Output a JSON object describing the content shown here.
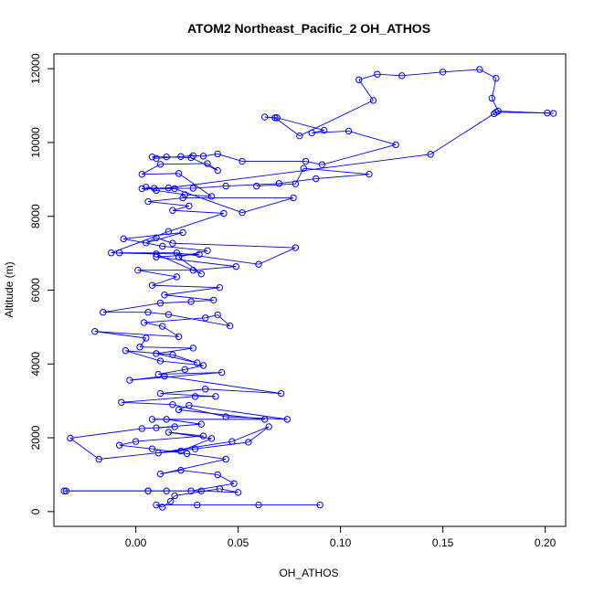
{
  "chart_data": {
    "type": "line",
    "title": "ATOM2 Northeast_Pacific_2 OH_ATHOS",
    "xlabel": "OH_ATHOS",
    "ylabel": "Altitude (m)",
    "xlim": [
      -0.04,
      0.21
    ],
    "ylim": [
      -400,
      12400
    ],
    "xticks": [
      0.0,
      0.05,
      0.1,
      0.15,
      0.2
    ],
    "xtick_labels": [
      "0.00",
      "0.05",
      "0.10",
      "0.15",
      "0.20"
    ],
    "yticks": [
      0,
      2000,
      4000,
      6000,
      8000,
      10000,
      12000
    ],
    "ytick_labels": [
      "0",
      "2000",
      "4000",
      "6000",
      "8000",
      "10000",
      "12000"
    ],
    "grid": false,
    "series": [
      {
        "color": "#0000ff",
        "marker": "open-circle",
        "x": [
          0.09,
          0.06,
          0.03,
          0.01,
          0.013,
          0.017,
          0.019,
          0.041,
          0.05,
          0.032,
          0.015,
          0.006,
          -0.035,
          -0.034,
          0.006,
          0.027,
          0.048,
          0.04,
          0.022,
          0.012,
          0.044,
          0.025,
          0.008,
          -0.008,
          0.0,
          0.033,
          0.016,
          0.037,
          0.022,
          0.011,
          0.047,
          0.065,
          0.055,
          0.029,
          -0.018,
          -0.032,
          0.003,
          0.019,
          0.01,
          0.032,
          0.015,
          0.008,
          0.063,
          0.021,
          0.026,
          0.074,
          0.044,
          0.018,
          -0.007,
          0.029,
          0.039,
          0.012,
          0.034,
          0.071,
          0.014,
          -0.003,
          0.042,
          0.011,
          0.024,
          0.033,
          0.012,
          -0.005,
          0.018,
          0.03,
          0.01,
          0.028,
          0.002,
          0.005,
          -0.02,
          0.021,
          0.013,
          0.004,
          0.034,
          0.04,
          0.046,
          0.016,
          0.006,
          -0.016,
          0.012,
          0.027,
          0.038,
          0.014,
          0.041,
          0.008,
          0.02,
          0.001,
          0.028,
          0.049,
          0.01,
          0.031,
          -0.008,
          0.02,
          0.06,
          0.078,
          0.018,
          0.01,
          0.005,
          0.023,
          -0.006,
          0.013,
          0.035,
          0.021,
          0.032,
          0.01,
          -0.012,
          0.016,
          0.043,
          0.018,
          0.026,
          0.006,
          0.023,
          0.077,
          0.052,
          0.019,
          0.003,
          0.016,
          0.144,
          0.175,
          0.176,
          0.201,
          0.204,
          0.177,
          0.174,
          0.176,
          0.168,
          0.15,
          0.13,
          0.118,
          0.109,
          0.116,
          0.08,
          0.068,
          0.063,
          0.069,
          0.092,
          0.086,
          0.104,
          0.127,
          0.091,
          0.083,
          0.052,
          0.04,
          0.033,
          0.028,
          0.022,
          0.01,
          0.008,
          0.015,
          0.027,
          0.04,
          0.035,
          0.012,
          0.003,
          0.021,
          0.037,
          0.024,
          0.01,
          0.005,
          0.009,
          0.028,
          0.044,
          0.07,
          0.088,
          0.114,
          0.082,
          0.078,
          0.059
        ]
      }
    ]
  }
}
